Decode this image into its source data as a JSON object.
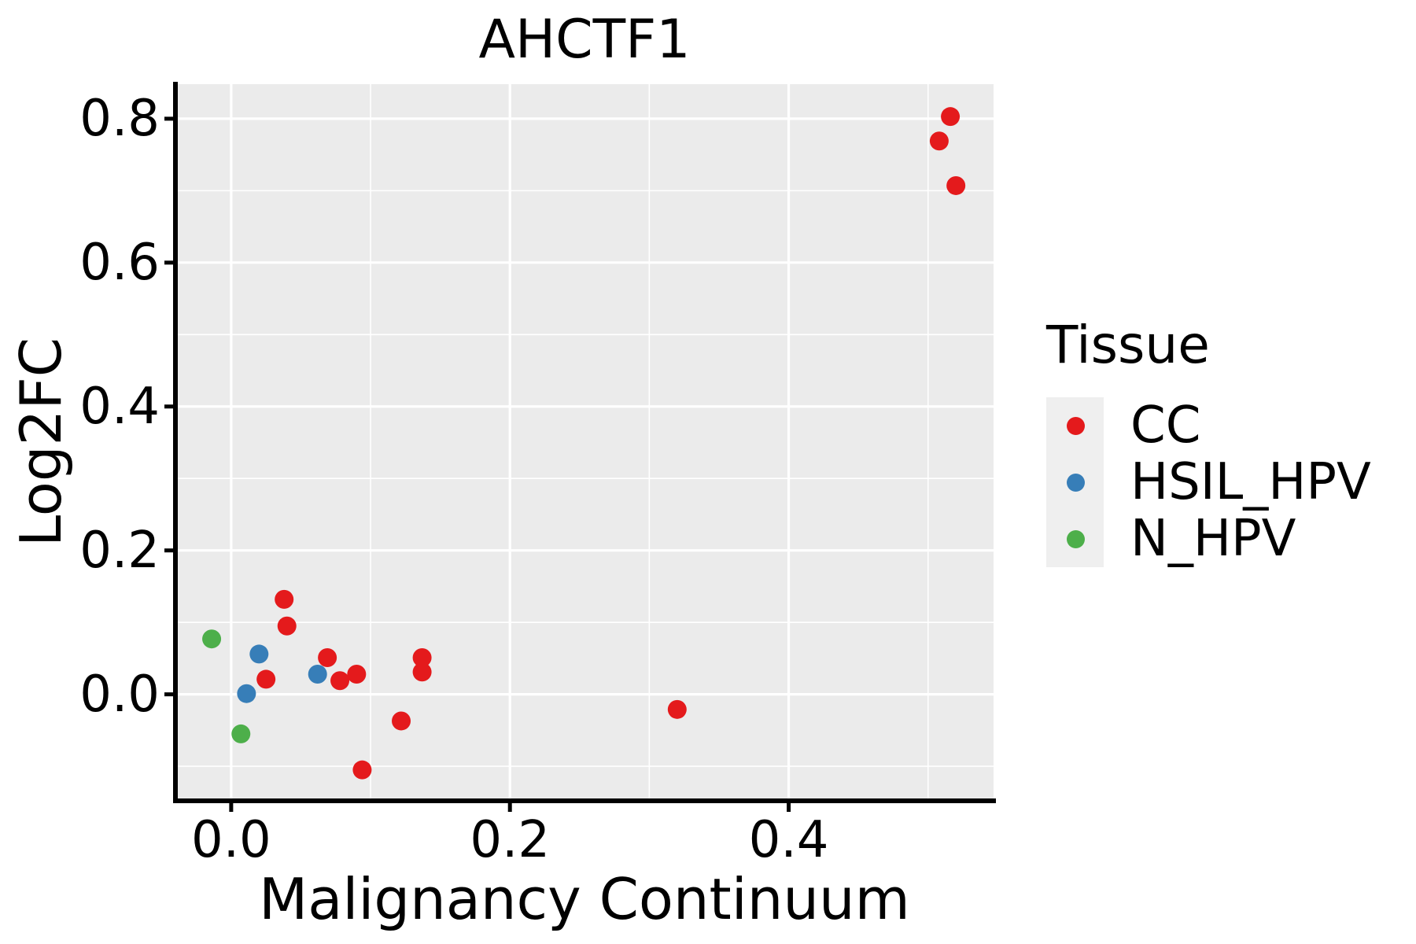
{
  "title": "AHCTF1",
  "x_axis": {
    "label": "Malignancy Continuum",
    "tick_labels": [
      "0.0",
      "0.2",
      "0.4"
    ]
  },
  "y_axis": {
    "label": "Log2FC",
    "tick_labels": [
      "0.0",
      "0.2",
      "0.4",
      "0.6",
      "0.8"
    ]
  },
  "legend": {
    "title": "Tissue",
    "items": [
      {
        "label": "CC",
        "color": "#E41A1C"
      },
      {
        "label": "HSIL_HPV",
        "color": "#377EB8"
      },
      {
        "label": "N_HPV",
        "color": "#4DAF4A"
      }
    ]
  },
  "style": {
    "panel_bg": "#EBEBEB",
    "grid_color": "#FFFFFF",
    "axis_color": "#000000",
    "legend_key_bg": "#EFEFEF",
    "text_color": "#000000"
  },
  "chart_data": {
    "type": "scatter",
    "title": "AHCTF1",
    "xlabel": "Malignancy Continuum",
    "ylabel": "Log2FC",
    "xlim": [
      -0.04,
      0.547
    ],
    "ylim": [
      -0.148,
      0.848
    ],
    "x_major_ticks": [
      0.0,
      0.2,
      0.4
    ],
    "x_minor_ticks": [
      0.1,
      0.3,
      0.5
    ],
    "y_major_ticks": [
      0.0,
      0.2,
      0.4,
      0.6,
      0.8
    ],
    "y_minor_ticks": [
      -0.1,
      0.1,
      0.3,
      0.5,
      0.7
    ],
    "grid": "white major and minor gridlines on gray panel",
    "legend_position": "right",
    "legend_title": "Tissue",
    "marker_radius_px": 12,
    "series": [
      {
        "name": "CC",
        "color": "#E41A1C",
        "points": [
          [
            0.516,
            0.803
          ],
          [
            0.508,
            0.769
          ],
          [
            0.52,
            0.707
          ],
          [
            0.038,
            0.132
          ],
          [
            0.04,
            0.095
          ],
          [
            0.025,
            0.021
          ],
          [
            0.069,
            0.051
          ],
          [
            0.078,
            0.019
          ],
          [
            0.09,
            0.028
          ],
          [
            0.137,
            0.051
          ],
          [
            0.137,
            0.031
          ],
          [
            0.122,
            -0.037
          ],
          [
            0.094,
            -0.105
          ],
          [
            0.32,
            -0.021
          ]
        ]
      },
      {
        "name": "HSIL_HPV",
        "color": "#377EB8",
        "points": [
          [
            0.02,
            0.056
          ],
          [
            0.062,
            0.028
          ],
          [
            0.011,
            0.001
          ]
        ]
      },
      {
        "name": "N_HPV",
        "color": "#4DAF4A",
        "points": [
          [
            -0.014,
            0.077
          ],
          [
            0.007,
            -0.055
          ]
        ]
      }
    ]
  }
}
